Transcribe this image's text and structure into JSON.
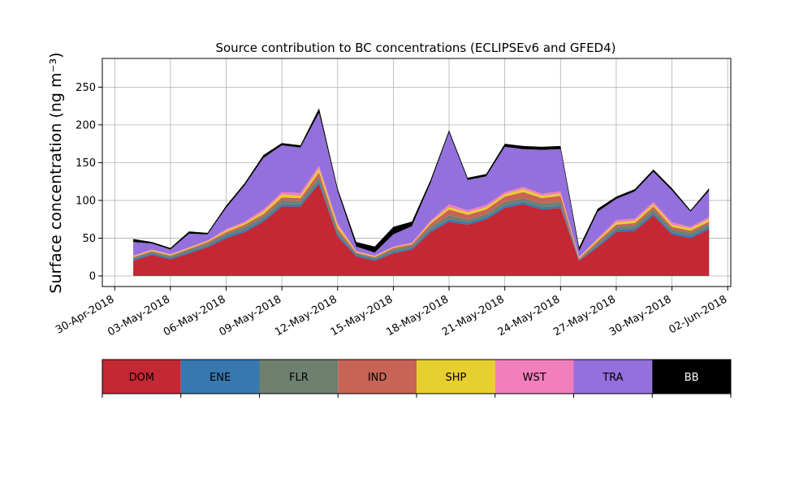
{
  "chart_data": {
    "type": "area",
    "stacked": true,
    "title": "Source contribution to BC concentrations (ECLIPSEv6 and GFED4)",
    "ylabel": "Surface concentration (ng m⁻³)",
    "xlabel": "",
    "ylim": [
      -14,
      288
    ],
    "yticks": [
      0,
      50,
      100,
      150,
      200,
      250
    ],
    "xlim": [
      "2018-04-29T08:00",
      "2018-06-02T04:00"
    ],
    "xticks": [
      "2018-04-30",
      "2018-05-03",
      "2018-05-06",
      "2018-05-09",
      "2018-05-12",
      "2018-05-15",
      "2018-05-18",
      "2018-05-21",
      "2018-05-24",
      "2018-05-27",
      "2018-05-30",
      "2018-06-02"
    ],
    "xtick_labels": [
      "30-Apr-2018",
      "03-May-2018",
      "06-May-2018",
      "09-May-2018",
      "12-May-2018",
      "15-May-2018",
      "18-May-2018",
      "21-May-2018",
      "24-May-2018",
      "27-May-2018",
      "30-May-2018",
      "02-Jun-2018"
    ],
    "grid": true,
    "legend_placement": "below",
    "legend": [
      {
        "name": "DOM",
        "color": "#c42834",
        "text_color": "#000000"
      },
      {
        "name": "ENE",
        "color": "#3778b0",
        "text_color": "#000000"
      },
      {
        "name": "FLR",
        "color": "#6e8070",
        "text_color": "#000000"
      },
      {
        "name": "IND",
        "color": "#c86456",
        "text_color": "#000000"
      },
      {
        "name": "SHP",
        "color": "#e6cf2e",
        "text_color": "#000000"
      },
      {
        "name": "WST",
        "color": "#f07fbc",
        "text_color": "#000000"
      },
      {
        "name": "TRA",
        "color": "#9370db",
        "text_color": "#000000"
      },
      {
        "name": "BB",
        "color": "#000000",
        "text_color": "#ffffff"
      }
    ],
    "dates": [
      "2018-05-01",
      "2018-05-02",
      "2018-05-03",
      "2018-05-04",
      "2018-05-05",
      "2018-05-06",
      "2018-05-07",
      "2018-05-08",
      "2018-05-09",
      "2018-05-10",
      "2018-05-11",
      "2018-05-12",
      "2018-05-13",
      "2018-05-14",
      "2018-05-15",
      "2018-05-16",
      "2018-05-17",
      "2018-05-18",
      "2018-05-19",
      "2018-05-20",
      "2018-05-21",
      "2018-05-22",
      "2018-05-23",
      "2018-05-24",
      "2018-05-25",
      "2018-05-26",
      "2018-05-27",
      "2018-05-28",
      "2018-05-29",
      "2018-05-30",
      "2018-05-31",
      "2018-06-01"
    ],
    "series": [
      {
        "name": "DOM",
        "color": "#c42834",
        "values": [
          20,
          28,
          22,
          30,
          38,
          50,
          58,
          72,
          92,
          92,
          122,
          52,
          26,
          20,
          30,
          35,
          58,
          72,
          68,
          75,
          90,
          95,
          88,
          90,
          20,
          38,
          58,
          60,
          80,
          55,
          50,
          62
        ]
      },
      {
        "name": "ENE",
        "color": "#3778b0",
        "values": [
          2,
          2,
          2,
          2,
          2,
          3,
          3,
          3,
          3,
          3,
          3,
          3,
          2,
          2,
          2,
          2,
          3,
          3,
          3,
          3,
          3,
          3,
          3,
          3,
          1,
          2,
          3,
          3,
          3,
          3,
          3,
          3
        ]
      },
      {
        "name": "FLR",
        "color": "#6e8070",
        "values": [
          2,
          2,
          2,
          3,
          3,
          3,
          4,
          4,
          5,
          4,
          6,
          4,
          2,
          2,
          3,
          3,
          4,
          5,
          4,
          4,
          5,
          5,
          5,
          5,
          1,
          3,
          4,
          4,
          5,
          4,
          4,
          4
        ]
      },
      {
        "name": "IND",
        "color": "#c86456",
        "values": [
          1,
          1,
          1,
          1,
          2,
          2,
          3,
          3,
          4,
          4,
          6,
          4,
          1,
          1,
          2,
          2,
          4,
          8,
          6,
          6,
          7,
          8,
          7,
          8,
          1,
          3,
          3,
          3,
          4,
          3,
          3,
          3
        ]
      },
      {
        "name": "SHP",
        "color": "#e6cf2e",
        "values": [
          1,
          1,
          1,
          1,
          1,
          2,
          2,
          3,
          4,
          3,
          5,
          4,
          1,
          1,
          1,
          1,
          2,
          3,
          3,
          3,
          3,
          4,
          3,
          3,
          1,
          2,
          3,
          3,
          3,
          3,
          3,
          3
        ]
      },
      {
        "name": "WST",
        "color": "#f07fbc",
        "values": [
          1,
          1,
          1,
          1,
          1,
          2,
          2,
          3,
          3,
          4,
          4,
          3,
          1,
          1,
          1,
          1,
          2,
          4,
          3,
          3,
          3,
          3,
          3,
          3,
          1,
          2,
          3,
          3,
          3,
          3,
          2,
          3
        ]
      },
      {
        "name": "TRA",
        "color": "#9370db",
        "values": [
          18,
          8,
          6,
          18,
          8,
          28,
          48,
          68,
          62,
          60,
          70,
          42,
          6,
          4,
          16,
          22,
          50,
          95,
          40,
          38,
          60,
          50,
          58,
          56,
          8,
          35,
          28,
          36,
          40,
          42,
          20,
          35
        ]
      },
      {
        "name": "BB",
        "color": "#000000",
        "values": [
          4,
          2,
          2,
          3,
          2,
          3,
          3,
          4,
          3,
          3,
          6,
          4,
          6,
          8,
          10,
          6,
          4,
          3,
          3,
          3,
          4,
          4,
          4,
          4,
          5,
          4,
          3,
          3,
          3,
          3,
          2,
          3
        ]
      }
    ]
  }
}
